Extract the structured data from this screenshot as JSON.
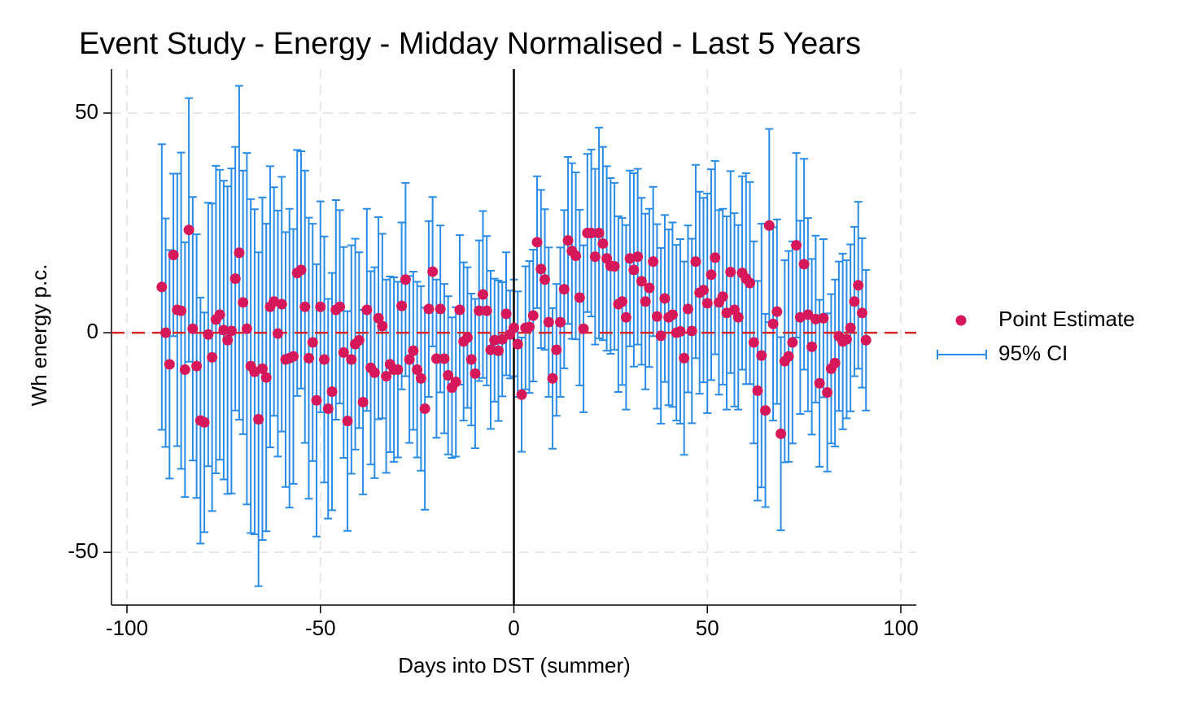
{
  "chart_data": {
    "type": "errorbar",
    "title": "Event Study - Energy - Midday Normalised - Last 5 Years",
    "x_label": "Days into DST (summer)",
    "y_label": "Wh energy p.c.",
    "x": [
      -91,
      -90,
      -89,
      -88,
      -87,
      -86,
      -85,
      -84,
      -83,
      -82,
      -81,
      -80,
      -79,
      -78,
      -77,
      -76,
      -75,
      -74,
      -73,
      -72,
      -71,
      -70,
      -69,
      -68,
      -67,
      -66,
      -65,
      -64,
      -63,
      -62,
      -61,
      -60,
      -59,
      -58,
      -57,
      -56,
      -55,
      -54,
      -53,
      -52,
      -51,
      -50,
      -49,
      -48,
      -47,
      -46,
      -45,
      -44,
      -43,
      -42,
      -41,
      -40,
      -39,
      -38,
      -37,
      -36,
      -35,
      -34,
      -33,
      -32,
      -31,
      -30,
      -29,
      -28,
      -27,
      -26,
      -25,
      -24,
      -23,
      -22,
      -21,
      -20,
      -19,
      -18,
      -17,
      -16,
      -15,
      -14,
      -13,
      -12,
      -11,
      -10,
      -9,
      -8,
      -7,
      -6,
      -5,
      -4,
      -3,
      -2,
      -1,
      0,
      1,
      2,
      3,
      4,
      5,
      6,
      7,
      8,
      9,
      10,
      11,
      12,
      13,
      14,
      15,
      16,
      17,
      18,
      19,
      20,
      21,
      22,
      23,
      24,
      25,
      26,
      27,
      28,
      29,
      30,
      31,
      32,
      33,
      34,
      35,
      36,
      37,
      38,
      39,
      40,
      41,
      42,
      43,
      44,
      45,
      46,
      47,
      48,
      49,
      50,
      51,
      52,
      53,
      54,
      55,
      56,
      57,
      58,
      59,
      60,
      61,
      62,
      63,
      64,
      65,
      66,
      67,
      68,
      69,
      70,
      71,
      72,
      73,
      74,
      75,
      76,
      77,
      78,
      79,
      80,
      81,
      82,
      83,
      84,
      85,
      86,
      87,
      88,
      89,
      90,
      91
    ],
    "series": [
      {
        "name": "Point Estimate",
        "color": "#d6185a",
        "values": [
          10.4,
          0,
          -7.2,
          17.7,
          5.2,
          5.0,
          -8.4,
          23.4,
          0.9,
          -7.6,
          -20,
          -20.4,
          -0.4,
          -5.6,
          3.0,
          4.1,
          0.6,
          -1.7,
          0.4,
          12.3,
          18.2,
          6.9,
          0.9,
          -7.6,
          -8.9,
          -19.7,
          -8.2,
          -10.2,
          5.9,
          7.1,
          -0.2,
          6.5,
          -6.1,
          -5.8,
          -5.4,
          13.6,
          14.3,
          5.9,
          -5.8,
          -2.2,
          -15.4,
          5.9,
          -6.1,
          -17.3,
          -13.4,
          5.2,
          5.9,
          -4.5,
          -20.1,
          -6.1,
          -2.6,
          -1.7,
          -15.8,
          5.2,
          -8.0,
          -9.1,
          3.3,
          1.5,
          -9.9,
          -7.2,
          -8.4,
          -8.4,
          6.1,
          12.1,
          -6.1,
          -4.1,
          -8.4,
          -10.4,
          -17.3,
          5.4,
          13.9,
          -5.9,
          5.4,
          -5.9,
          -9.7,
          -12.5,
          -11.2,
          5.2,
          -2.0,
          -1.1,
          -6.1,
          -9.3,
          5.0,
          8.7,
          5.0,
          -3.9,
          -1.7,
          -4.1,
          -1.5,
          4.3,
          -0.4,
          1.1,
          -2.6,
          -14.1,
          1.1,
          1.3,
          3.9,
          20.6,
          14.5,
          12.1,
          2.4,
          -10.4,
          -3.9,
          2.4,
          9.9,
          21.0,
          18.6,
          17.5,
          8.0,
          0.9,
          22.7,
          22.7,
          17.3,
          22.7,
          20.3,
          16.9,
          15.2,
          15.1,
          6.5,
          7.1,
          3.5,
          16.9,
          14.3,
          17.3,
          11.7,
          7.1,
          10.2,
          16.2,
          3.7,
          -0.7,
          7.8,
          3.5,
          4.1,
          0,
          0.3,
          -5.8,
          5.4,
          0.4,
          16.2,
          9.1,
          9.7,
          6.7,
          13.2,
          17.1,
          6.9,
          8.2,
          4.5,
          13.8,
          5.2,
          3.5,
          13.6,
          12.3,
          11.3,
          -2.2,
          -13.2,
          -5.2,
          -17.7,
          24.4,
          2.0,
          4.8,
          -23.0,
          -6.5,
          -5.4,
          -2.2,
          19.9,
          3.5,
          15.6,
          4.1,
          -3.2,
          3.1,
          -11.5,
          3.3,
          -13.6,
          -8.2,
          -6.9,
          -0.8,
          -2.0,
          -1.5,
          1.1,
          7.1,
          10.8,
          4.5,
          -1.7
        ]
      },
      {
        "name": "95% CI",
        "color": "#2b8ce8",
        "values": [
          32.5,
          26,
          26,
          18.5,
          31,
          36,
          29,
          30,
          30,
          30,
          28,
          25,
          30,
          35,
          35,
          33,
          34,
          35,
          37,
          30,
          38,
          30,
          40,
          38,
          37,
          38,
          39,
          35,
          32,
          26,
          28,
          29,
          29,
          34,
          29,
          28,
          27,
          31,
          32,
          27,
          31,
          24,
          28,
          25,
          27,
          25,
          22,
          24,
          25,
          26,
          24,
          20,
          21,
          23,
          22,
          24,
          23,
          21,
          22,
          20,
          21,
          20,
          19,
          22,
          19,
          18,
          20,
          21,
          23,
          20,
          17,
          18,
          19,
          17,
          18,
          16,
          17,
          17,
          18,
          16,
          15,
          17,
          16,
          19,
          17,
          18,
          14,
          16,
          13,
          14,
          10,
          11,
          12,
          13,
          14,
          15,
          15,
          15,
          18,
          16,
          17,
          16,
          15,
          17,
          18,
          19,
          20,
          19,
          20,
          19,
          18,
          19,
          20,
          24,
          22,
          21,
          20,
          19,
          20,
          19,
          21,
          20,
          22,
          20,
          19,
          20,
          18,
          17,
          21,
          20,
          19,
          20,
          21,
          20,
          21,
          22,
          19,
          21,
          22,
          23,
          21,
          25,
          24,
          22,
          21,
          20,
          22,
          23,
          22,
          21,
          22,
          24,
          23,
          23,
          25,
          30,
          22,
          22,
          22,
          21,
          22,
          23,
          24,
          23,
          21,
          22,
          24,
          22,
          20,
          19,
          19,
          18,
          18,
          17,
          19,
          17,
          20,
          18,
          19,
          17,
          19,
          17,
          16
        ]
      }
    ],
    "xlim": [
      -104,
      104
    ],
    "ylim": [
      -62,
      60
    ],
    "xticks": [
      -100,
      -50,
      0,
      50,
      100
    ],
    "yticks": [
      -50,
      0,
      50
    ],
    "vline": 0,
    "hline": 0,
    "grid": true,
    "legend": "right"
  }
}
